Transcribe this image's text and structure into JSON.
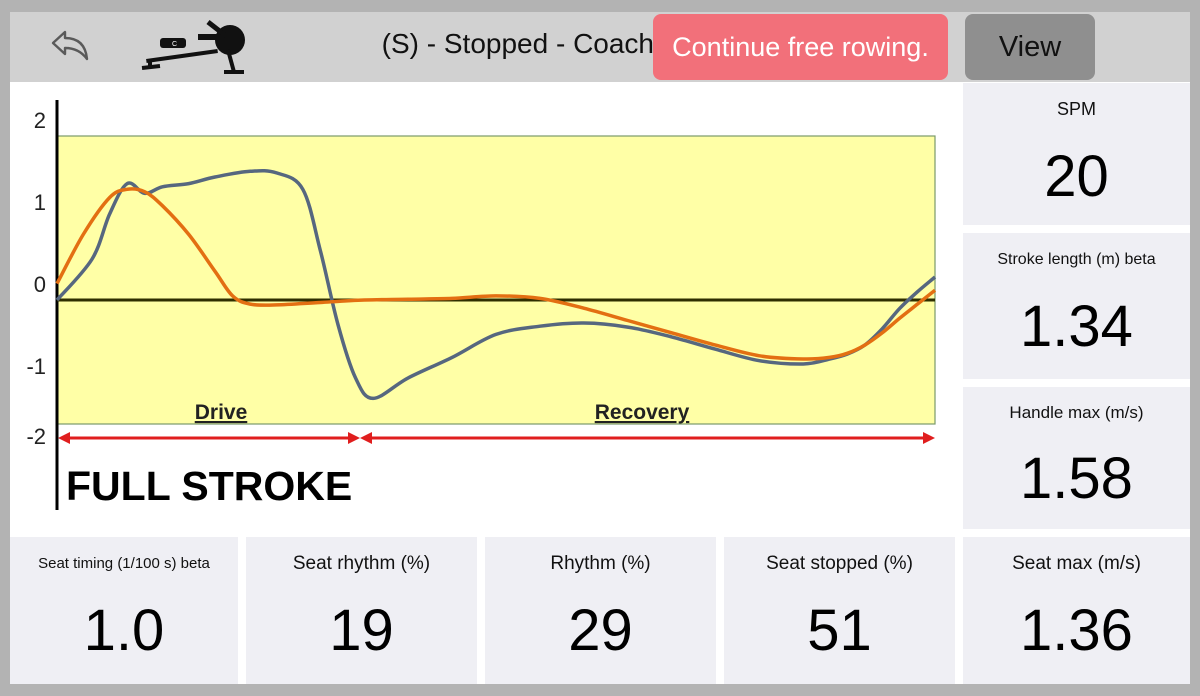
{
  "header": {
    "title": "(S) - Stopped - Coach",
    "continue_label": "Continue free rowing.",
    "view_label": "View",
    "back_icon": "back-arrow-icon",
    "logo_icon": "rowing-machine-icon"
  },
  "colors": {
    "accent_button": "#f2707a",
    "view_button": "#8f8f8f",
    "plot_background": "#ffffa6",
    "handle_series": "#56677f",
    "seat_series": "#e36f12",
    "arrow": "#e01e1e"
  },
  "annotations": {
    "drive": "Drive",
    "recovery": "Recovery",
    "full_stroke": "FULL STROKE"
  },
  "chart_data": {
    "type": "line",
    "title": "",
    "xlabel": "",
    "ylabel": "",
    "ylim": [
      -2,
      2
    ],
    "yticks": [
      "2",
      "1",
      "0",
      "-1",
      "-2"
    ],
    "grid": false,
    "legend": "none",
    "series": [
      {
        "color": "#56677f",
        "x": [
          0,
          4,
          6,
          8,
          10,
          12,
          15,
          18,
          22,
          25,
          28,
          30,
          32,
          34,
          36,
          40,
          45,
          50,
          55,
          60,
          65,
          70,
          75,
          80,
          85,
          88,
          90,
          92,
          94,
          96,
          98,
          100
        ],
        "y": [
          0,
          0.5,
          1.05,
          1.42,
          1.3,
          1.38,
          1.42,
          1.5,
          1.57,
          1.55,
          1.35,
          0.6,
          -0.3,
          -0.95,
          -1.2,
          -0.95,
          -0.7,
          -0.42,
          -0.32,
          -0.28,
          -0.33,
          -0.45,
          -0.6,
          -0.74,
          -0.78,
          -0.72,
          -0.66,
          -0.55,
          -0.35,
          -0.1,
          0.1,
          0.28
        ]
      },
      {
        "color": "#e36f12",
        "x": [
          0,
          3,
          6,
          8,
          10,
          12,
          15,
          18,
          20,
          22,
          25,
          30,
          35,
          40,
          45,
          50,
          55,
          60,
          65,
          70,
          75,
          80,
          85,
          88,
          90,
          92,
          94,
          96,
          98,
          100
        ],
        "y": [
          0.2,
          0.8,
          1.25,
          1.35,
          1.32,
          1.15,
          0.8,
          0.35,
          0.05,
          -0.05,
          -0.06,
          -0.03,
          0,
          0.01,
          0.02,
          0.05,
          0.02,
          -0.1,
          -0.25,
          -0.4,
          -0.55,
          -0.68,
          -0.72,
          -0.7,
          -0.65,
          -0.55,
          -0.4,
          -0.22,
          -0.05,
          0.12
        ]
      }
    ]
  },
  "metrics": {
    "spm": {
      "label": "SPM",
      "value": "20"
    },
    "stroke_length": {
      "label": "Stroke length (m) beta",
      "value": "1.34"
    },
    "handle_max": {
      "label": "Handle max (m/s)",
      "value": "1.58"
    },
    "seat_timing": {
      "label": "Seat timing (1/100 s) beta",
      "value": "1.0"
    },
    "seat_rhythm": {
      "label": "Seat rhythm (%)",
      "value": "19"
    },
    "rhythm": {
      "label": "Rhythm (%)",
      "value": "29"
    },
    "seat_stopped": {
      "label": "Seat stopped (%)",
      "value": "51"
    },
    "seat_max": {
      "label": "Seat max (m/s)",
      "value": "1.36"
    }
  }
}
